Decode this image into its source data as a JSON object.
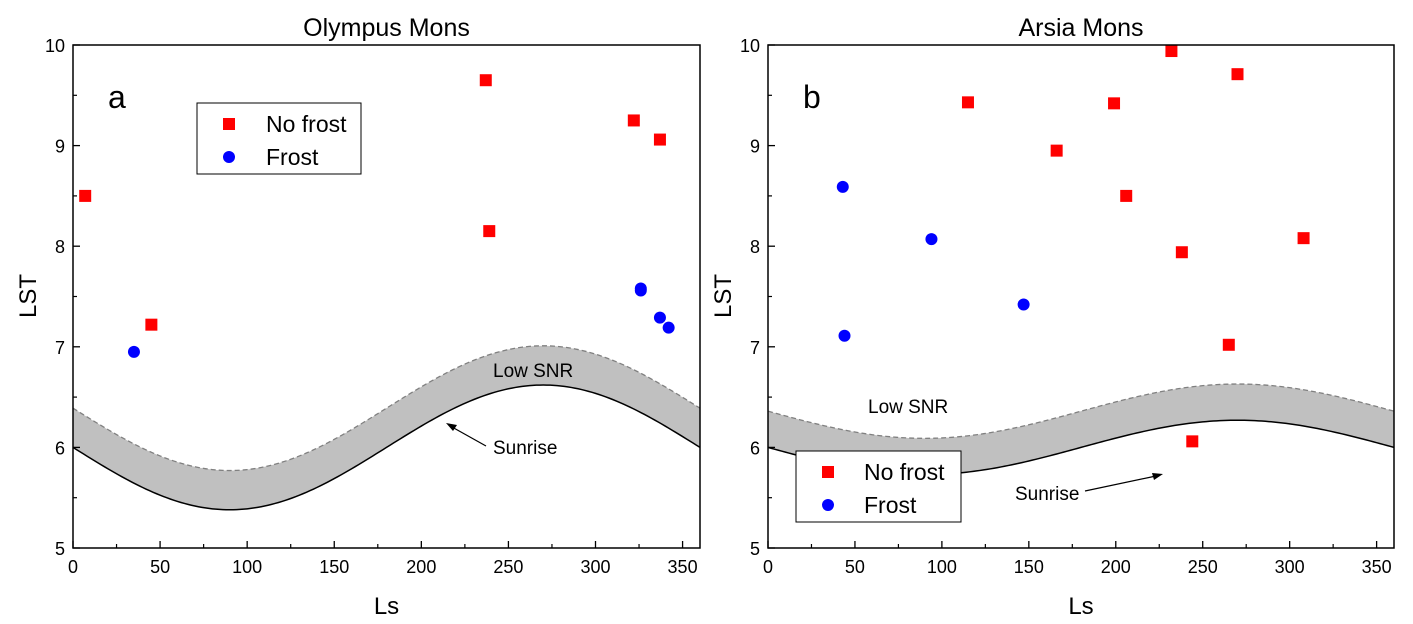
{
  "chart_data": [
    {
      "type": "scatter",
      "panel_label": "a",
      "title": "Olympus Mons",
      "xlabel": "Ls",
      "ylabel": "LST",
      "xlim": [
        0,
        360
      ],
      "ylim": [
        5,
        10
      ],
      "xticks": [
        0,
        50,
        100,
        150,
        200,
        250,
        300,
        350
      ],
      "yticks": [
        5,
        6,
        7,
        8,
        9,
        10
      ],
      "grid": false,
      "legend_position": "top-left",
      "band_label": "Low SNR",
      "curve_label": "Sunrise",
      "sunrise": {
        "mean": 6.0,
        "amplitude": 0.62,
        "phase": 0
      },
      "band_upper": {
        "mean": 6.39,
        "amplitude": 0.62,
        "phase": 0
      },
      "series": [
        {
          "name": "No frost",
          "marker": "square",
          "color": "#ff0000",
          "points": [
            [
              7,
              8.5
            ],
            [
              45,
              7.22
            ],
            [
              237,
              9.65
            ],
            [
              239,
              8.15
            ],
            [
              322,
              9.25
            ],
            [
              337,
              9.06
            ]
          ]
        },
        {
          "name": "Frost",
          "marker": "circle",
          "color": "#0000ff",
          "points": [
            [
              35,
              6.95
            ],
            [
              326,
              7.58
            ],
            [
              326,
              7.56
            ],
            [
              337,
              7.29
            ],
            [
              342,
              7.19
            ]
          ]
        }
      ]
    },
    {
      "type": "scatter",
      "panel_label": "b",
      "title": "Arsia Mons",
      "xlabel": "Ls",
      "ylabel": "LST",
      "xlim": [
        0,
        360
      ],
      "ylim": [
        5,
        10
      ],
      "xticks": [
        0,
        50,
        100,
        150,
        200,
        250,
        300,
        350
      ],
      "yticks": [
        5,
        6,
        7,
        8,
        9,
        10
      ],
      "grid": false,
      "legend_position": "bottom-left",
      "band_label": "Low SNR",
      "curve_label": "Sunrise",
      "sunrise": {
        "mean": 6.0,
        "amplitude": 0.27,
        "phase": 0
      },
      "band_upper": {
        "mean": 6.36,
        "amplitude": 0.27,
        "phase": 0
      },
      "series": [
        {
          "name": "No frost",
          "marker": "square",
          "color": "#ff0000",
          "points": [
            [
              115,
              9.43
            ],
            [
              166,
              8.95
            ],
            [
              199,
              9.42
            ],
            [
              206,
              8.5
            ],
            [
              232,
              9.94
            ],
            [
              238,
              7.94
            ],
            [
              244,
              6.06
            ],
            [
              265,
              7.02
            ],
            [
              270,
              9.71
            ],
            [
              308,
              8.08
            ]
          ]
        },
        {
          "name": "Frost",
          "marker": "circle",
          "color": "#0000ff",
          "points": [
            [
              43,
              8.59
            ],
            [
              44,
              7.11
            ],
            [
              94,
              8.07
            ],
            [
              147,
              7.42
            ]
          ]
        }
      ]
    }
  ]
}
